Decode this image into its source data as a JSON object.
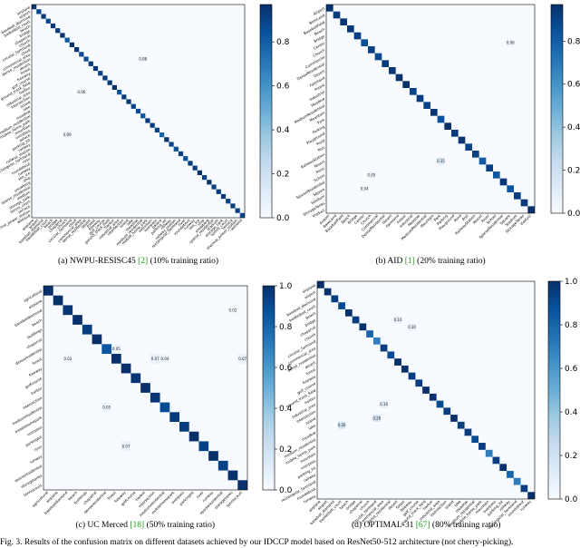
{
  "chart_data": [
    {
      "type": "heatmap",
      "caption": {
        "before": "(a) NWPU-RESISC45 ",
        "ref": "[2]",
        "after": " (10% training ratio)"
      },
      "categories": [
        "airplane",
        "airport",
        "baseball_diamond",
        "basketball_court",
        "beach",
        "bridge",
        "chaparral",
        "church",
        "circular_farmland",
        "cloud",
        "commercial_area",
        "dense_residential",
        "desert",
        "forest",
        "freeway",
        "golf_course",
        "ground_track_field",
        "harbor",
        "industrial_area",
        "intersection",
        "island",
        "lake",
        "meadow",
        "medium_residential",
        "mobile_home_park",
        "mountain",
        "overpass",
        "palace",
        "parking_lot",
        "railway",
        "railway_station",
        "rectangular_farmland",
        "river",
        "roundabout",
        "runway",
        "sea_ice",
        "ship",
        "snowberg",
        "sparse_residential",
        "stadium",
        "storage_tank",
        "tennis_court",
        "terrace",
        "thermal_power_station",
        "wetland"
      ],
      "diagonal": [
        0.95,
        0.9,
        0.93,
        0.88,
        0.94,
        0.92,
        0.97,
        0.82,
        0.96,
        0.96,
        0.87,
        0.86,
        0.94,
        0.95,
        0.9,
        0.93,
        0.95,
        0.97,
        0.85,
        0.92,
        0.94,
        0.9,
        0.87,
        0.84,
        0.93,
        0.92,
        0.9,
        0.78,
        0.96,
        0.89,
        0.86,
        0.91,
        0.85,
        0.93,
        0.92,
        0.97,
        0.9,
        0.96,
        0.91,
        0.93,
        0.94,
        0.9,
        0.92,
        0.9,
        0.88
      ],
      "cells": [
        {
          "row": 11,
          "col": 23,
          "value": 0.08
        },
        {
          "row": 27,
          "col": 7,
          "value": 0.09
        },
        {
          "row": 18,
          "col": 10,
          "value": 0.06
        }
      ],
      "zlim": [
        0,
        0.97
      ],
      "cticks": [
        {
          "value": 0,
          "label": "0.0"
        },
        0.2,
        0.4,
        0.6,
        0.8
      ]
    },
    {
      "type": "heatmap",
      "caption": {
        "before": "(b) AID ",
        "ref": "[1]",
        "after": " (20% training ratio)"
      },
      "categories": [
        "Airport",
        "BareLand",
        "BaseballField",
        "Beach",
        "Bridge",
        "Center",
        "Church",
        "Commercial",
        "DenseResidential",
        "Desert",
        "Farmland",
        "Forest",
        "Industrial",
        "Meadow",
        "MediumResidential",
        "Mountain",
        "Park",
        "Parking",
        "Playground",
        "Pond",
        "Port",
        "RailwayStation",
        "Resort",
        "River",
        "School",
        "SparseResidential",
        "Square",
        "Stadium",
        "StorageTanks",
        "Viaduct"
      ],
      "diagonal": [
        0.96,
        0.93,
        0.95,
        0.94,
        0.92,
        0.85,
        0.91,
        0.88,
        0.93,
        0.95,
        0.96,
        0.97,
        0.9,
        0.93,
        0.9,
        0.95,
        0.85,
        0.97,
        0.93,
        0.94,
        0.9,
        0.91,
        0.8,
        0.91,
        0.82,
        0.94,
        0.84,
        0.92,
        0.93,
        0.96
      ],
      "cells": [
        {
          "row": 22,
          "col": 16,
          "value": 0.15
        },
        {
          "row": 24,
          "col": 6,
          "value": 0.05
        },
        {
          "row": 26,
          "col": 5,
          "value": 0.04
        },
        {
          "row": 5,
          "col": 26,
          "value": 0.06
        }
      ],
      "zlim": [
        0,
        0.97
      ],
      "cticks": [
        {
          "value": 0,
          "label": "0.0"
        },
        0.2,
        0.4,
        0.6,
        0.8
      ]
    },
    {
      "type": "heatmap",
      "caption": {
        "before": "(c) UC Merced ",
        "ref": "[18]",
        "after": " (50% training ratio)"
      },
      "categories": [
        "agricultural",
        "airplane",
        "baseballdiamond",
        "beach",
        "buildings",
        "chaparral",
        "denseresidential",
        "forest",
        "freeway",
        "golfcourse",
        "harbor",
        "intersection",
        "mediumresidential",
        "mobilehomepark",
        "overpass",
        "parkinglot",
        "river",
        "runway",
        "sparseresidential",
        "storagetanks",
        "tenniscourt"
      ],
      "diagonal": [
        1,
        1,
        0.98,
        1,
        0.95,
        1,
        0.85,
        1,
        1,
        0.98,
        1,
        0.98,
        0.9,
        0.96,
        0.95,
        1,
        0.93,
        1,
        0.93,
        1,
        1
      ],
      "cells": [
        {
          "row": 2,
          "col": 19,
          "value": 0.02
        },
        {
          "row": 6,
          "col": 7,
          "value": 0.05
        },
        {
          "row": 7,
          "col": 2,
          "value": 0.02
        },
        {
          "row": 7,
          "col": 11,
          "value": 0.07
        },
        {
          "row": 7,
          "col": 12,
          "value": 0.04
        },
        {
          "row": 7,
          "col": 20,
          "value": 0.07
        },
        {
          "row": 12,
          "col": 6,
          "value": 0.05
        },
        {
          "row": 16,
          "col": 8,
          "value": 0.07
        }
      ],
      "zlim": [
        0,
        1
      ],
      "cticks": [
        {
          "value": 0,
          "label": "0.0"
        },
        0.2,
        0.4,
        0.6,
        0.8,
        {
          "value": 1,
          "label": "1.0"
        }
      ]
    },
    {
      "type": "heatmap",
      "caption": {
        "before": "(d) OPTIMAL-31 ",
        "ref": "[67]",
        "after": " (80% training ratio)"
      },
      "categories": [
        "airplane",
        "airport",
        "baseball_diamond",
        "basketball_court",
        "beach",
        "bridge",
        "chaparral",
        "church",
        "circular_farmland",
        "commercial_area",
        "dense_residential",
        "desert",
        "forest",
        "freeway",
        "golf_course",
        "ground_track_field",
        "harbor",
        "industrial_area",
        "intersection",
        "island",
        "lake",
        "meadow",
        "medium_residential",
        "mobile_home_park",
        "mountain",
        "overpass",
        "parking_lot",
        "railway",
        "rectangular_farmland",
        "roundabout",
        "runway"
      ],
      "diagonal": [
        1,
        1,
        0.95,
        0.9,
        1,
        0.95,
        1,
        0.8,
        0.7,
        0.95,
        0.9,
        1,
        1,
        0.95,
        0.95,
        1,
        1,
        0.9,
        0.95,
        1,
        0.95,
        0.95,
        0.9,
        0.95,
        0.7,
        0.95,
        1,
        0.8,
        0.7,
        0.95,
        1
      ],
      "cells": [
        {
          "row": 5,
          "col": 11,
          "value": 0.1
        },
        {
          "row": 6,
          "col": 13,
          "value": 0.1
        },
        {
          "row": 17,
          "col": 9,
          "value": 0.1
        },
        {
          "row": 20,
          "col": 3,
          "value": 0.2
        },
        {
          "row": 19,
          "col": 8,
          "value": 0.2
        }
      ],
      "zlim": [
        0,
        1
      ],
      "cticks": [
        {
          "value": 0,
          "label": "0.0"
        },
        0.2,
        0.4,
        0.6,
        0.8,
        {
          "value": 1,
          "label": "1.0"
        }
      ]
    }
  ],
  "caption": "Fig. 3.  Results of the confusion matrix on different datasets achieved by our IDCCP model based on ResNet50-512 architecture (not cherry-picking)."
}
